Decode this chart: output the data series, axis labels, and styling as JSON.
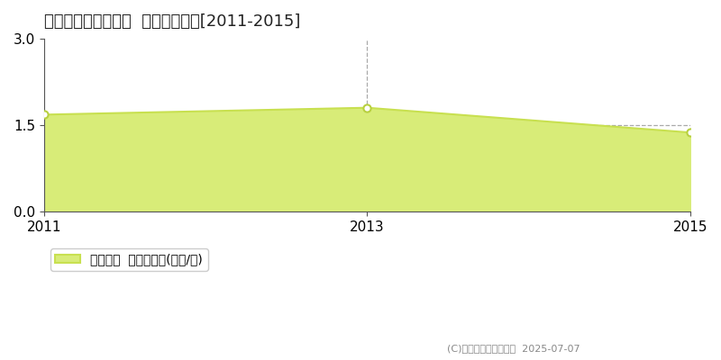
{
  "title": "芳賀郡益子町上大羽  土地価格推移[2011-2015]",
  "years": [
    2011,
    2013,
    2015
  ],
  "values": [
    1.68,
    1.8,
    1.37
  ],
  "line_color": "#c8e050",
  "fill_color": "#d8ec78",
  "marker_color": "#ffffff",
  "marker_edge_color": "#b8d040",
  "ylim": [
    0,
    3
  ],
  "yticks": [
    0,
    1.5,
    3
  ],
  "xticks": [
    2011,
    2013,
    2015
  ],
  "grid_color": "#aaaaaa",
  "vline_x": 2013,
  "legend_label": "土地価格  平均坪単価(万円/坪)",
  "copyright": "(C)土地価格ドットコム  2025-07-07",
  "bg_color": "#ffffff",
  "plot_bg_color": "#ffffff",
  "title_fontsize": 13,
  "tick_fontsize": 11,
  "legend_fontsize": 10
}
